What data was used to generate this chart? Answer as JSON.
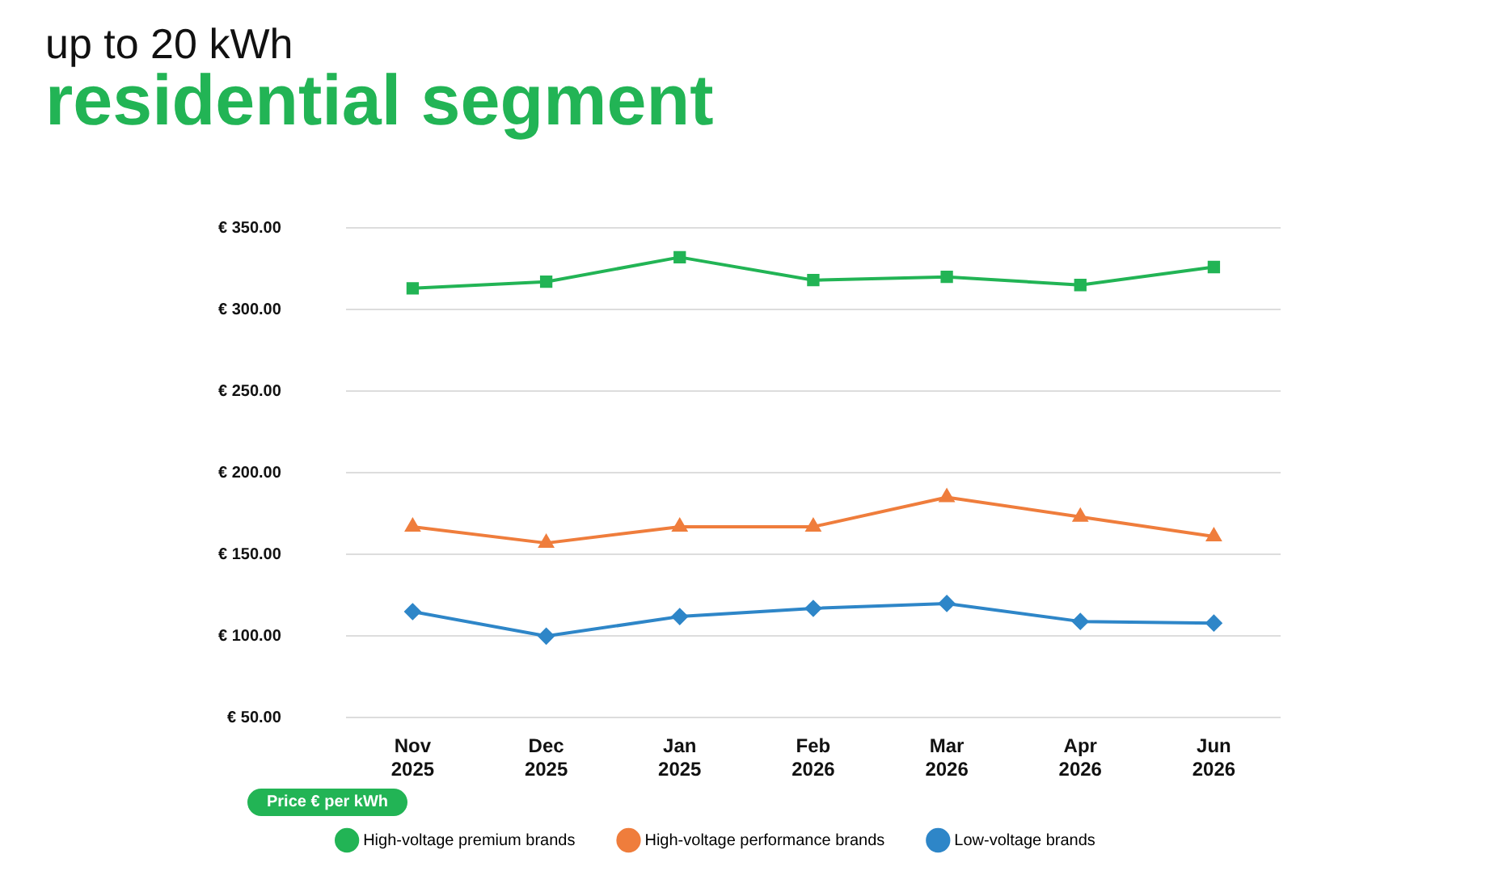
{
  "chart_data": {
    "type": "line",
    "title": "residential segment",
    "subtitle": "up to 20 kWh",
    "ylabel": "Price € per kWh",
    "categories": [
      "Nov 2025",
      "Dec 2025",
      "Jan 2025",
      "Feb 2026",
      "Mar 2026",
      "Apr 2026",
      "Jun 2026"
    ],
    "series": [
      {
        "name": "High-voltage premium brands",
        "color": "#22b455",
        "marker": "square",
        "values": [
          313,
          317,
          332,
          318,
          320,
          315,
          326
        ]
      },
      {
        "name": "High-voltage performance brands",
        "color": "#ef7d3c",
        "marker": "triangle",
        "values": [
          167,
          157,
          167,
          167,
          185,
          173,
          161
        ]
      },
      {
        "name": "Low-voltage brands",
        "color": "#2e86c8",
        "marker": "diamond",
        "values": [
          115,
          100,
          112,
          117,
          120,
          109,
          108
        ]
      }
    ],
    "ylim": [
      50,
      350
    ],
    "yticks": [
      {
        "value": 50,
        "label": "€ 50.00"
      },
      {
        "value": 100,
        "label": "€ 100.00"
      },
      {
        "value": 150,
        "label": "€ 150.00"
      },
      {
        "value": 200,
        "label": "€ 200.00"
      },
      {
        "value": 250,
        "label": "€ 250.00"
      },
      {
        "value": 300,
        "label": "€ 300.00"
      },
      {
        "value": 350,
        "label": "€ 350.00"
      }
    ],
    "grid": "y",
    "legend": "bottom",
    "line_style": "solid"
  }
}
